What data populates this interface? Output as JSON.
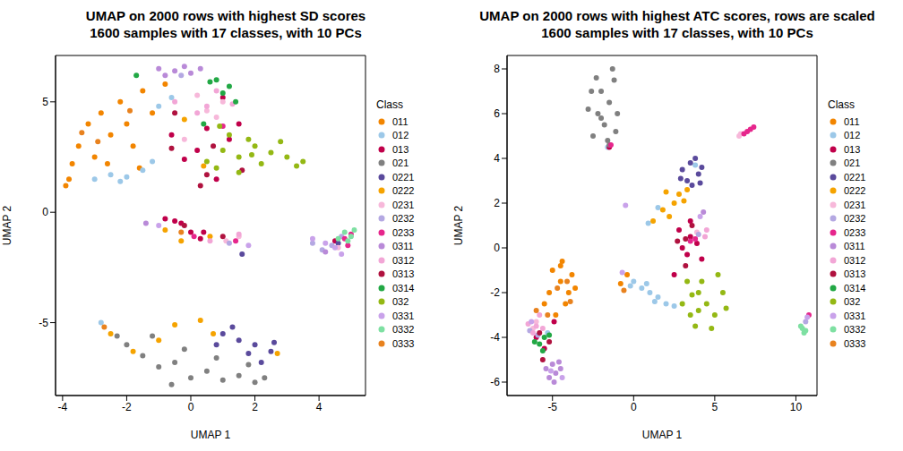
{
  "chart_data": [
    {
      "type": "scatter",
      "title": "UMAP on 2000 rows with highest SD scores",
      "subtitle": "1600 samples with 17 classes, with 10 PCs",
      "x_label": "UMAP 1",
      "y_label": "UMAP 2",
      "legend_title": "Class",
      "legend": "right",
      "grid": false,
      "xlim": [
        -4.22,
        5.45
      ],
      "ylim": [
        -8.3,
        7.1
      ],
      "xticks": [
        -4,
        -2,
        0,
        2,
        4
      ],
      "yticks": [
        -5,
        0,
        5
      ],
      "series": [
        {
          "name": "011",
          "color": "#F28500",
          "x": [
            -3.8,
            -3.5,
            -3.2,
            -3,
            -2.8,
            -2.5,
            -2.2,
            -2,
            -1.8,
            -1.5,
            -1.2,
            -3.7,
            -2.6,
            -1.6,
            -0.8,
            -3.9
          ],
          "y": [
            1.5,
            3,
            4,
            2.5,
            4.5,
            3.5,
            5,
            4,
            3,
            5.5,
            4.5,
            2.2,
            2.2,
            2,
            5.8,
            1.2
          ]
        },
        {
          "name": "012",
          "color": "#9CC8E8",
          "x": [
            -3,
            -2.5,
            -2,
            -1.5,
            -2.8,
            -2.2,
            -1.2,
            -1,
            -0.6
          ],
          "y": [
            1.5,
            1.7,
            1.6,
            1.9,
            -5,
            1.4,
            2.3,
            4.8,
            5.2
          ]
        },
        {
          "name": "013",
          "color": "#C0004A",
          "x": [
            -0.8,
            -0.5,
            -0.3,
            0,
            0.3,
            1,
            0.5,
            -0.2,
            0.8,
            0.2,
            1.2,
            -0.6,
            0.4,
            4.5,
            1.5
          ],
          "y": [
            -0.3,
            -0.4,
            -0.5,
            -0.9,
            -1.2,
            5.2,
            3.8,
            2.4,
            1.5,
            2.8,
            3.3,
            3.5,
            -0.9,
            -1.3,
            4
          ]
        },
        {
          "name": "021",
          "color": "#808080",
          "x": [
            -2,
            -1.5,
            -1,
            -0.5,
            0,
            0.5,
            1,
            1.5,
            2,
            2.3,
            -1.2,
            -0.2,
            0.8,
            -2.3,
            -0.6,
            1.8
          ],
          "y": [
            -6,
            -6.5,
            -7,
            -6.8,
            -7.5,
            -7.2,
            -7.6,
            -7.4,
            -7.7,
            -7.5,
            -5.6,
            -6.2,
            -6.6,
            -5.6,
            -7.8,
            -6.9
          ]
        },
        {
          "name": "0221",
          "color": "#5A4A9C",
          "x": [
            1,
            1.5,
            2,
            2.5,
            1.3,
            2.2,
            0.8,
            1.8,
            2.6,
            1.6,
            4.6
          ],
          "y": [
            -5.5,
            -5.8,
            -6,
            -6.3,
            -5.2,
            -6.8,
            -6,
            -6.4,
            -5.9,
            -1.9,
            -1.4
          ]
        },
        {
          "name": "0222",
          "color": "#F5A300",
          "x": [
            -2.5,
            -1.8,
            -0.5,
            0.3,
            0.7,
            -0.3,
            0.6,
            -1,
            0.4,
            -0.2,
            -0.8,
            2.7
          ],
          "y": [
            -5.5,
            -6.3,
            -5.1,
            -4.9,
            -5.5,
            -1.3,
            -1.1,
            -5.8,
            2.1,
            4.2,
            -0.8,
            -6.4
          ]
        },
        {
          "name": "0231",
          "color": "#F7B8DA",
          "x": [
            0.5,
            1,
            0.2,
            -0.2,
            1.5,
            4.6,
            1.1,
            0.8
          ],
          "y": [
            4.6,
            5,
            5.3,
            3.3,
            -1.1,
            -1.6,
            -1.3,
            4.3
          ]
        },
        {
          "name": "0232",
          "color": "#B4A8E2",
          "x": [
            4.1,
            4.4,
            3.8,
            4.7,
            1.2,
            -0.3
          ],
          "y": [
            -1.7,
            -1.5,
            -1.4,
            -1.1,
            -1.4,
            6.2
          ]
        },
        {
          "name": "0233",
          "color": "#E6268C",
          "x": [
            4.8,
            5,
            1.4,
            0.1,
            1,
            4.9
          ],
          "y": [
            -1.2,
            -1,
            -1.3,
            -1.1,
            3.9,
            -1.5
          ]
        },
        {
          "name": "0311",
          "color": "#B98AD8",
          "x": [
            -1,
            -0.5,
            0,
            0.3,
            -0.8,
            -0.2,
            4.2,
            -1.4
          ],
          "y": [
            6.5,
            6.4,
            6.3,
            6.5,
            6.2,
            6.6,
            -1.8,
            -0.5
          ]
        },
        {
          "name": "0312",
          "color": "#F2A6D6",
          "x": [
            0.5,
            0.2,
            0.8,
            1.5,
            -0.5,
            1.3,
            0.6
          ],
          "y": [
            4.8,
            4.5,
            5.5,
            -1,
            5,
            4.9,
            -1.3
          ]
        },
        {
          "name": "0313",
          "color": "#B0123F",
          "x": [
            -0.5,
            0.7,
            1.6,
            0.5,
            -0.6,
            1,
            -0.2,
            0.3
          ],
          "y": [
            4.5,
            3,
            1.9,
            1.7,
            2.9,
            -1.1,
            -0.6,
            1.2
          ]
        },
        {
          "name": "0314",
          "color": "#22A845",
          "x": [
            0.8,
            1.2,
            1,
            0.6,
            1.4,
            0.4,
            -1.7
          ],
          "y": [
            6,
            5.7,
            5.4,
            5.9,
            5,
            4,
            6.2
          ]
        },
        {
          "name": "032",
          "color": "#94B814",
          "x": [
            0.5,
            1,
            1.5,
            2,
            2.5,
            3,
            3.5,
            1.2,
            1.8,
            2.2,
            1.5,
            2.8,
            0.8,
            3.3,
            1.9,
            0.9
          ],
          "y": [
            2.3,
            2.8,
            2.5,
            3,
            2.7,
            2.5,
            2.3,
            3.5,
            3.3,
            2.2,
            1.8,
            3.2,
            2,
            2.1,
            2.6,
            3.9
          ]
        },
        {
          "name": "0331",
          "color": "#C9A2EA",
          "x": [
            3.8,
            4.2,
            4.5,
            1.8,
            4.7,
            -1
          ],
          "y": [
            -1.2,
            -1.4,
            -1.6,
            -1.5,
            -1.9,
            -0.6
          ]
        },
        {
          "name": "0332",
          "color": "#7EE0A2",
          "x": [
            4.8,
            5,
            4.9,
            5.1,
            4.6
          ],
          "y": [
            -0.9,
            -1.1,
            -1.3,
            -0.8,
            -1.2
          ]
        },
        {
          "name": "0333",
          "color": "#E8821E",
          "x": [
            -3.4,
            -2.9,
            -1.9,
            -2.7,
            -0.3
          ],
          "y": [
            3.6,
            3.2,
            4.6,
            -5.2,
            -0.9
          ]
        }
      ]
    },
    {
      "type": "scatter",
      "title": "UMAP on 2000 rows with highest ATC scores, rows are scaled",
      "subtitle": "1600 samples with 17 classes, with 10 PCs",
      "x_label": "UMAP 1",
      "y_label": "UMAP 2",
      "legend_title": "Class",
      "legend": "right",
      "grid": false,
      "xlim": [
        -7.8,
        11.3
      ],
      "ylim": [
        -6.6,
        8.6
      ],
      "xticks": [
        -5,
        0,
        5,
        10
      ],
      "yticks": [
        -6,
        -4,
        -2,
        0,
        2,
        4,
        6,
        8
      ],
      "series": [
        {
          "name": "011",
          "color": "#F28500",
          "x": [
            -5,
            -4.5,
            -4,
            -4.5,
            -3.8,
            -5.2,
            -4.2,
            -3.6,
            -4.8,
            -5.5,
            -4.4,
            -0.4,
            -0.8
          ],
          "y": [
            -1,
            -1.5,
            -2,
            -0.8,
            -1.2,
            -2,
            -2.5,
            -1.8,
            -3,
            -2.5,
            -0.6,
            -1.2,
            -1.6
          ]
        },
        {
          "name": "012",
          "color": "#9CC8E8",
          "x": [
            0,
            0.5,
            1,
            1.5,
            2,
            2.5,
            0.8,
            1.3,
            -0.2,
            1.5,
            0.9,
            3.8,
            -5.3,
            -1.6
          ],
          "y": [
            -1.5,
            -1.8,
            -2,
            -2.2,
            -2.5,
            -2.6,
            -1.6,
            -2.4,
            -1.7,
            1.8,
            1.1,
            3.7,
            -3.8,
            4.5
          ]
        },
        {
          "name": "013",
          "color": "#C0004A",
          "x": [
            3,
            3.5,
            3.3,
            3.9,
            2.8,
            4.2,
            2.5,
            -6,
            -5.5,
            -4.9,
            3.5,
            -1.5
          ],
          "y": [
            0,
            0.5,
            -0.3,
            0.2,
            0.8,
            -0.5,
            -1.2,
            -4,
            -4.5,
            -3.3,
            1.2,
            4.5
          ]
        },
        {
          "name": "021",
          "color": "#808080",
          "x": [
            -2.5,
            -2.2,
            -2,
            -1.8,
            -1.5,
            -1.2,
            -1,
            -2.8,
            -1.6,
            -2.3,
            -1.3,
            -2,
            -1.1,
            -2.6,
            -1.5
          ],
          "y": [
            5,
            6,
            7,
            5.5,
            6.5,
            7.5,
            6,
            6.2,
            4.8,
            7.6,
            8,
            5.8,
            5.2,
            7,
            4.6
          ]
        },
        {
          "name": "0221",
          "color": "#5A4A9C",
          "x": [
            3,
            3.5,
            4,
            3.3,
            3.8,
            4.2,
            3.6,
            2.9,
            4.1
          ],
          "y": [
            3.5,
            3.8,
            3.3,
            3,
            4,
            3.6,
            2.8,
            3.1,
            2.9
          ]
        },
        {
          "name": "0222",
          "color": "#F5A300",
          "x": [
            2,
            2.5,
            2.8,
            1.8,
            3.1,
            2.2,
            1.2,
            3.3
          ],
          "y": [
            2.5,
            2,
            2.4,
            1.7,
            2.1,
            1.4,
            1.2,
            2.6
          ]
        },
        {
          "name": "0231",
          "color": "#F7B8DA",
          "x": [
            6.5,
            6.6,
            -6,
            -6.2,
            3.9
          ],
          "y": [
            5,
            5.1,
            -3.3,
            -3.6,
            0.7
          ]
        },
        {
          "name": "0232",
          "color": "#B4A8E2",
          "x": [
            -5.9,
            -6.4,
            10.6,
            4
          ],
          "y": [
            -3.9,
            -3.7,
            -3.3,
            0.6
          ]
        },
        {
          "name": "0233",
          "color": "#E6268C",
          "x": [
            6.8,
            7,
            7.2,
            7.4,
            -1.4,
            3.5,
            3.8,
            10.8
          ],
          "y": [
            5.1,
            5.2,
            5.3,
            5.4,
            4.6,
            0.3,
            0.4,
            -3
          ]
        },
        {
          "name": "0311",
          "color": "#B98AD8",
          "x": [
            -5,
            -4.8,
            -4.5,
            -5.2,
            -4.9,
            -4.6,
            -5.4,
            4.3
          ],
          "y": [
            -5.2,
            -5.6,
            -5.4,
            -5.8,
            -6,
            -5.1,
            -5.4,
            1.6
          ]
        },
        {
          "name": "0312",
          "color": "#F2A6D6",
          "x": [
            -6,
            -5.8,
            -6.5,
            -5.6,
            4.5,
            4.4,
            -6.2
          ],
          "y": [
            -3.5,
            -3,
            -3.4,
            -3.6,
            0.8,
            0.5,
            -3.8
          ]
        },
        {
          "name": "0313",
          "color": "#B0123F",
          "x": [
            3.2,
            3.6,
            2.7,
            -5.8,
            -5.2,
            -5.6,
            3.2
          ],
          "y": [
            -0.8,
            1,
            0.3,
            -3.8,
            -4.2,
            -5,
            0.4
          ]
        },
        {
          "name": "0314",
          "color": "#22A845",
          "x": [
            -5.5,
            -5.8,
            -6.1,
            -5.2,
            -5.6
          ],
          "y": [
            -4,
            -4.3,
            -4.2,
            -3.9,
            -4.6
          ]
        },
        {
          "name": "032",
          "color": "#94B814",
          "x": [
            3,
            3.5,
            4,
            4.5,
            5,
            3.8,
            4.2,
            5.5,
            4.8,
            3.3,
            5.2,
            4,
            5.7,
            3.6
          ],
          "y": [
            -2.5,
            -3,
            -2,
            -2.5,
            -3,
            -3.5,
            -1.5,
            -2,
            -3.6,
            -1.5,
            -1.2,
            -2.8,
            -2.7,
            -2.1
          ]
        },
        {
          "name": "0331",
          "color": "#C9A2EA",
          "x": [
            -5.1,
            -4.4,
            -6.3,
            4.1,
            -0.5,
            -0.7,
            10.7
          ],
          "y": [
            -5.5,
            -5.8,
            -3.3,
            1.4,
            1.9,
            -1.1,
            -3.1
          ]
        },
        {
          "name": "0332",
          "color": "#7EE0A2",
          "x": [
            10.4,
            10.5,
            10.3,
            10.6
          ],
          "y": [
            -3.6,
            -3.8,
            -3.5,
            -3.7
          ]
        },
        {
          "name": "0333",
          "color": "#E8821E",
          "x": [
            -4.7,
            -3.9,
            -5.3,
            -6,
            -4.1,
            -0.6
          ],
          "y": [
            -1.8,
            -2.4,
            -3,
            -2.8,
            -1.5,
            -1.9
          ]
        }
      ]
    }
  ]
}
